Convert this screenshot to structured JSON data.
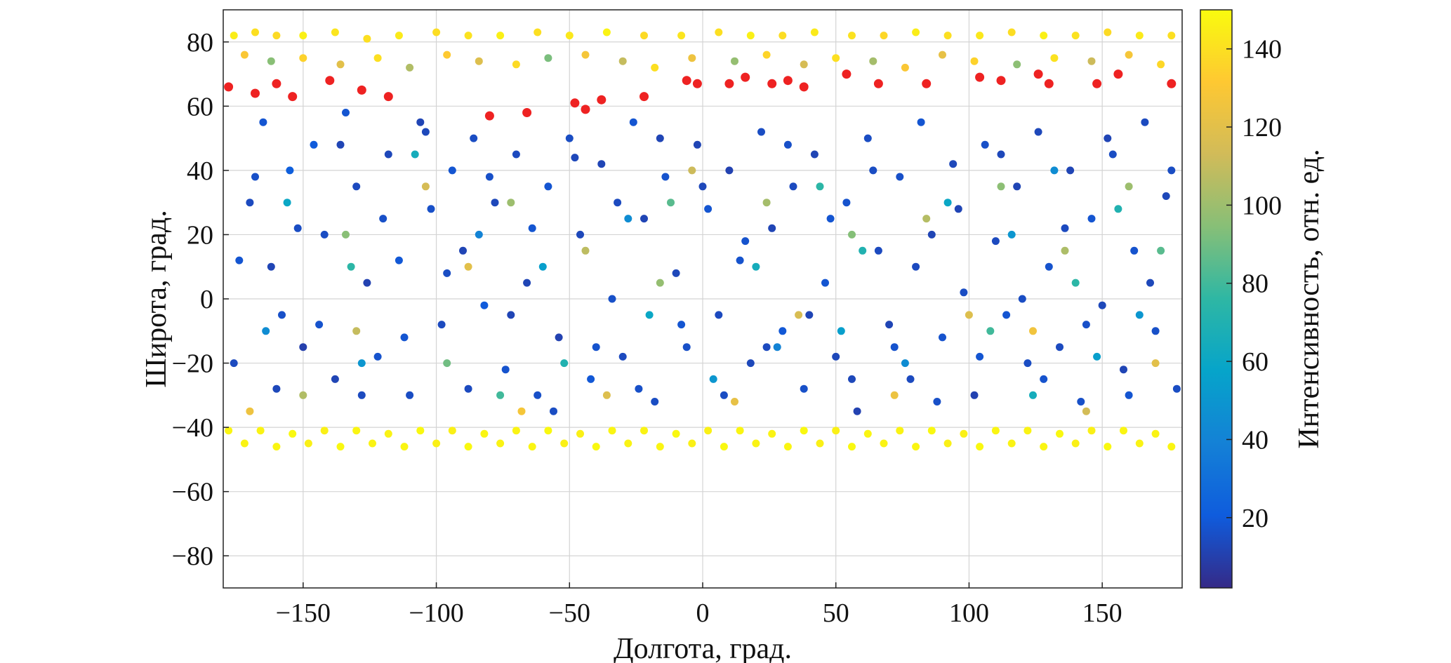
{
  "chart_data": {
    "type": "scatter",
    "title": "",
    "xlabel": "Долгота, град.",
    "ylabel": "Широта, град.",
    "colorbar_label": "Интенсивность, отн. ед.",
    "xlim": [
      -180,
      180
    ],
    "ylim": [
      -90,
      90
    ],
    "clim": [
      2,
      150
    ],
    "grid": true,
    "xticks": [
      -150,
      -100,
      -50,
      0,
      50,
      100,
      150
    ],
    "xtick_labels": [
      "−150",
      "−100",
      "−50",
      "0",
      "50",
      "100",
      "150"
    ],
    "yticks": [
      -80,
      -60,
      -40,
      -20,
      0,
      20,
      40,
      60,
      80
    ],
    "ytick_labels": [
      "−80",
      "−60",
      "−40",
      "−20",
      "0",
      "20",
      "40",
      "60",
      "80"
    ],
    "colorbar_ticks": [
      20,
      40,
      60,
      80,
      100,
      120,
      140
    ],
    "colorbar_tick_labels": [
      "20",
      "40",
      "60",
      "80",
      "100",
      "120",
      "140"
    ],
    "colormap": [
      "#352a87",
      "#0f5cdd",
      "#1481d6",
      "#06a4ca",
      "#2eb7a4",
      "#87bf77",
      "#d1bb59",
      "#fec832",
      "#f9fb0e"
    ],
    "saturated_color": "#ee2222",
    "points": [
      [
        -178,
        66,
        200
      ],
      [
        -168,
        64,
        200
      ],
      [
        -160,
        67,
        200
      ],
      [
        -154,
        63,
        200
      ],
      [
        -140,
        68,
        200
      ],
      [
        -128,
        65,
        200
      ],
      [
        -118,
        63,
        200
      ],
      [
        -80,
        57,
        200
      ],
      [
        -66,
        58,
        200
      ],
      [
        -48,
        61,
        200
      ],
      [
        -44,
        59,
        200
      ],
      [
        -38,
        62,
        200
      ],
      [
        -22,
        63,
        200
      ],
      [
        -6,
        68,
        200
      ],
      [
        -2,
        67,
        200
      ],
      [
        10,
        67,
        200
      ],
      [
        16,
        69,
        200
      ],
      [
        26,
        67,
        200
      ],
      [
        32,
        68,
        200
      ],
      [
        38,
        66,
        200
      ],
      [
        54,
        70,
        200
      ],
      [
        66,
        67,
        200
      ],
      [
        84,
        67,
        200
      ],
      [
        104,
        69,
        200
      ],
      [
        112,
        68,
        200
      ],
      [
        126,
        70,
        200
      ],
      [
        130,
        67,
        200
      ],
      [
        148,
        67,
        200
      ],
      [
        156,
        70,
        200
      ],
      [
        176,
        67,
        200
      ],
      [
        -176,
        82,
        145
      ],
      [
        -168,
        83,
        140
      ],
      [
        -160,
        82,
        138
      ],
      [
        -150,
        82,
        146
      ],
      [
        -138,
        83,
        142
      ],
      [
        -126,
        81,
        140
      ],
      [
        -114,
        82,
        144
      ],
      [
        -100,
        83,
        139
      ],
      [
        -88,
        82,
        141
      ],
      [
        -76,
        82,
        146
      ],
      [
        -62,
        83,
        140
      ],
      [
        -50,
        82,
        143
      ],
      [
        -36,
        83,
        147
      ],
      [
        -22,
        82,
        138
      ],
      [
        -8,
        82,
        142
      ],
      [
        6,
        83,
        140
      ],
      [
        18,
        82,
        146
      ],
      [
        30,
        82,
        139
      ],
      [
        42,
        83,
        144
      ],
      [
        56,
        82,
        141
      ],
      [
        68,
        82,
        137
      ],
      [
        80,
        83,
        145
      ],
      [
        92,
        82,
        140
      ],
      [
        104,
        82,
        143
      ],
      [
        116,
        83,
        139
      ],
      [
        128,
        82,
        146
      ],
      [
        140,
        82,
        141
      ],
      [
        152,
        83,
        138
      ],
      [
        164,
        82,
        144
      ],
      [
        176,
        82,
        140
      ],
      [
        -172,
        76,
        130
      ],
      [
        -162,
        74,
        95
      ],
      [
        -150,
        75,
        135
      ],
      [
        -136,
        73,
        120
      ],
      [
        -122,
        75,
        140
      ],
      [
        -110,
        72,
        105
      ],
      [
        -96,
        76,
        132
      ],
      [
        -84,
        74,
        118
      ],
      [
        -70,
        73,
        138
      ],
      [
        -58,
        75,
        92
      ],
      [
        -44,
        76,
        128
      ],
      [
        -30,
        74,
        110
      ],
      [
        -18,
        72,
        140
      ],
      [
        -4,
        75,
        125
      ],
      [
        12,
        74,
        98
      ],
      [
        24,
        76,
        136
      ],
      [
        38,
        73,
        115
      ],
      [
        50,
        75,
        140
      ],
      [
        64,
        74,
        102
      ],
      [
        76,
        72,
        130
      ],
      [
        90,
        76,
        122
      ],
      [
        102,
        74,
        135
      ],
      [
        118,
        73,
        96
      ],
      [
        132,
        75,
        141
      ],
      [
        146,
        74,
        112
      ],
      [
        160,
        76,
        128
      ],
      [
        172,
        73,
        137
      ],
      [
        -178,
        -41,
        148
      ],
      [
        -166,
        -41,
        147
      ],
      [
        -154,
        -42,
        149
      ],
      [
        -142,
        -41,
        146
      ],
      [
        -130,
        -41,
        148
      ],
      [
        -118,
        -42,
        147
      ],
      [
        -106,
        -41,
        149
      ],
      [
        -94,
        -41,
        146
      ],
      [
        -82,
        -42,
        148
      ],
      [
        -70,
        -41,
        147
      ],
      [
        -58,
        -41,
        149
      ],
      [
        -46,
        -42,
        146
      ],
      [
        -34,
        -41,
        148
      ],
      [
        -22,
        -41,
        147
      ],
      [
        -10,
        -42,
        149
      ],
      [
        2,
        -41,
        146
      ],
      [
        14,
        -41,
        148
      ],
      [
        26,
        -42,
        147
      ],
      [
        38,
        -41,
        149
      ],
      [
        50,
        -41,
        146
      ],
      [
        62,
        -42,
        148
      ],
      [
        74,
        -41,
        147
      ],
      [
        86,
        -41,
        149
      ],
      [
        98,
        -42,
        146
      ],
      [
        110,
        -41,
        148
      ],
      [
        122,
        -41,
        147
      ],
      [
        134,
        -42,
        149
      ],
      [
        146,
        -41,
        146
      ],
      [
        158,
        -41,
        148
      ],
      [
        170,
        -42,
        147
      ],
      [
        -172,
        -45,
        147
      ],
      [
        -160,
        -46,
        148
      ],
      [
        -148,
        -45,
        146
      ],
      [
        -136,
        -46,
        149
      ],
      [
        -124,
        -45,
        147
      ],
      [
        -112,
        -46,
        148
      ],
      [
        -100,
        -45,
        146
      ],
      [
        -88,
        -46,
        149
      ],
      [
        -76,
        -45,
        147
      ],
      [
        -64,
        -46,
        148
      ],
      [
        -52,
        -45,
        146
      ],
      [
        -40,
        -46,
        149
      ],
      [
        -28,
        -45,
        147
      ],
      [
        -16,
        -46,
        148
      ],
      [
        -4,
        -45,
        146
      ],
      [
        8,
        -46,
        149
      ],
      [
        20,
        -45,
        147
      ],
      [
        32,
        -46,
        148
      ],
      [
        44,
        -45,
        146
      ],
      [
        56,
        -46,
        149
      ],
      [
        68,
        -45,
        147
      ],
      [
        80,
        -46,
        148
      ],
      [
        92,
        -45,
        146
      ],
      [
        104,
        -46,
        149
      ],
      [
        116,
        -45,
        147
      ],
      [
        128,
        -46,
        148
      ],
      [
        140,
        -45,
        146
      ],
      [
        152,
        -46,
        149
      ],
      [
        164,
        -45,
        147
      ],
      [
        176,
        -46,
        148
      ],
      [
        -170,
        30,
        14
      ],
      [
        -165,
        55,
        18
      ],
      [
        -162,
        10,
        12
      ],
      [
        -158,
        -5,
        16
      ],
      [
        -155,
        40,
        22
      ],
      [
        -150,
        -15,
        10
      ],
      [
        -146,
        48,
        20
      ],
      [
        -142,
        20,
        15
      ],
      [
        -138,
        -25,
        12
      ],
      [
        -134,
        58,
        18
      ],
      [
        -130,
        35,
        14
      ],
      [
        -126,
        5,
        11
      ],
      [
        -122,
        -18,
        17
      ],
      [
        -118,
        45,
        13
      ],
      [
        -114,
        12,
        19
      ],
      [
        -110,
        -30,
        15
      ],
      [
        -106,
        55,
        12
      ],
      [
        -102,
        28,
        16
      ],
      [
        -98,
        -8,
        14
      ],
      [
        -94,
        40,
        18
      ],
      [
        -90,
        15,
        12
      ],
      [
        -86,
        50,
        15
      ],
      [
        -82,
        -2,
        20
      ],
      [
        -78,
        30,
        13
      ],
      [
        -74,
        -22,
        17
      ],
      [
        -70,
        45,
        14
      ],
      [
        -66,
        5,
        12
      ],
      [
        -62,
        -30,
        16
      ],
      [
        -58,
        35,
        18
      ],
      [
        -54,
        -12,
        11
      ],
      [
        -50,
        50,
        15
      ],
      [
        -46,
        20,
        13
      ],
      [
        -42,
        -25,
        19
      ],
      [
        -38,
        42,
        12
      ],
      [
        -34,
        0,
        16
      ],
      [
        -30,
        -18,
        14
      ],
      [
        -26,
        55,
        18
      ],
      [
        -22,
        25,
        12
      ],
      [
        -18,
        -32,
        15
      ],
      [
        -14,
        38,
        17
      ],
      [
        -10,
        8,
        13
      ],
      [
        -6,
        -15,
        16
      ],
      [
        -2,
        48,
        12
      ],
      [
        2,
        28,
        18
      ],
      [
        6,
        -5,
        14
      ],
      [
        10,
        40,
        11
      ],
      [
        14,
        12,
        17
      ],
      [
        18,
        -20,
        13
      ],
      [
        22,
        52,
        15
      ],
      [
        26,
        22,
        12
      ],
      [
        30,
        -10,
        19
      ],
      [
        34,
        35,
        14
      ],
      [
        38,
        -28,
        16
      ],
      [
        42,
        45,
        12
      ],
      [
        46,
        5,
        18
      ],
      [
        50,
        -18,
        13
      ],
      [
        54,
        30,
        17
      ],
      [
        58,
        -35,
        11
      ],
      [
        62,
        50,
        15
      ],
      [
        66,
        15,
        14
      ],
      [
        70,
        -8,
        12
      ],
      [
        74,
        38,
        16
      ],
      [
        78,
        -25,
        14
      ],
      [
        82,
        55,
        18
      ],
      [
        86,
        20,
        12
      ],
      [
        90,
        -12,
        17
      ],
      [
        94,
        42,
        13
      ],
      [
        98,
        2,
        15
      ],
      [
        102,
        -30,
        11
      ],
      [
        106,
        48,
        16
      ],
      [
        110,
        18,
        14
      ],
      [
        114,
        -5,
        18
      ],
      [
        118,
        35,
        12
      ],
      [
        122,
        -20,
        15
      ],
      [
        126,
        52,
        13
      ],
      [
        130,
        10,
        17
      ],
      [
        134,
        -15,
        14
      ],
      [
        138,
        40,
        12
      ],
      [
        142,
        -32,
        16
      ],
      [
        146,
        25,
        18
      ],
      [
        150,
        -2,
        13
      ],
      [
        154,
        45,
        15
      ],
      [
        158,
        -22,
        12
      ],
      [
        162,
        15,
        17
      ],
      [
        166,
        55,
        14
      ],
      [
        170,
        -10,
        16
      ],
      [
        174,
        32,
        13
      ],
      [
        178,
        -28,
        15
      ],
      [
        -176,
        -20,
        14
      ],
      [
        -168,
        38,
        16
      ],
      [
        -174,
        12,
        18
      ],
      [
        -160,
        -28,
        13
      ],
      [
        -152,
        22,
        15
      ],
      [
        -144,
        -8,
        17
      ],
      [
        -136,
        48,
        12
      ],
      [
        -128,
        -30,
        14
      ],
      [
        -120,
        25,
        16
      ],
      [
        -112,
        -12,
        18
      ],
      [
        -104,
        52,
        13
      ],
      [
        -96,
        8,
        15
      ],
      [
        -88,
        -28,
        14
      ],
      [
        -80,
        38,
        16
      ],
      [
        -72,
        -5,
        12
      ],
      [
        -64,
        22,
        18
      ],
      [
        -56,
        -35,
        15
      ],
      [
        -48,
        44,
        13
      ],
      [
        -40,
        -15,
        17
      ],
      [
        -32,
        30,
        14
      ],
      [
        -24,
        -28,
        16
      ],
      [
        -16,
        50,
        12
      ],
      [
        -8,
        -8,
        18
      ],
      [
        0,
        35,
        13
      ],
      [
        8,
        -30,
        15
      ],
      [
        16,
        18,
        17
      ],
      [
        24,
        -15,
        14
      ],
      [
        32,
        48,
        16
      ],
      [
        40,
        -5,
        12
      ],
      [
        48,
        25,
        18
      ],
      [
        56,
        -25,
        13
      ],
      [
        64,
        40,
        15
      ],
      [
        72,
        -15,
        17
      ],
      [
        80,
        10,
        14
      ],
      [
        88,
        -32,
        16
      ],
      [
        96,
        28,
        12
      ],
      [
        104,
        -18,
        18
      ],
      [
        112,
        45,
        13
      ],
      [
        120,
        0,
        15
      ],
      [
        128,
        -25,
        17
      ],
      [
        136,
        22,
        14
      ],
      [
        144,
        -8,
        16
      ],
      [
        152,
        50,
        12
      ],
      [
        160,
        -30,
        18
      ],
      [
        168,
        5,
        13
      ],
      [
        176,
        40,
        15
      ],
      [
        -164,
        -10,
        45
      ],
      [
        -156,
        30,
        60
      ],
      [
        -132,
        10,
        75
      ],
      [
        -128,
        -20,
        50
      ],
      [
        -108,
        45,
        65
      ],
      [
        -84,
        20,
        40
      ],
      [
        -76,
        -30,
        80
      ],
      [
        -60,
        10,
        55
      ],
      [
        -52,
        -20,
        70
      ],
      [
        -28,
        25,
        45
      ],
      [
        -20,
        -5,
        60
      ],
      [
        -12,
        30,
        85
      ],
      [
        4,
        -25,
        50
      ],
      [
        20,
        10,
        65
      ],
      [
        28,
        -15,
        40
      ],
      [
        44,
        35,
        75
      ],
      [
        52,
        -10,
        55
      ],
      [
        60,
        15,
        70
      ],
      [
        76,
        -20,
        45
      ],
      [
        92,
        30,
        60
      ],
      [
        108,
        -10,
        80
      ],
      [
        116,
        20,
        50
      ],
      [
        124,
        -30,
        65
      ],
      [
        132,
        40,
        45
      ],
      [
        140,
        5,
        75
      ],
      [
        148,
        -18,
        55
      ],
      [
        156,
        28,
        70
      ],
      [
        164,
        -5,
        50
      ],
      [
        172,
        15,
        85
      ],
      [
        -170,
        -35,
        125
      ],
      [
        -150,
        -30,
        105
      ],
      [
        -134,
        20,
        95
      ],
      [
        -130,
        -10,
        110
      ],
      [
        -104,
        35,
        115
      ],
      [
        -96,
        -20,
        90
      ],
      [
        -88,
        10,
        120
      ],
      [
        -72,
        30,
        100
      ],
      [
        -68,
        -35,
        128
      ],
      [
        -44,
        15,
        108
      ],
      [
        -36,
        -30,
        118
      ],
      [
        -16,
        5,
        98
      ],
      [
        -4,
        40,
        112
      ],
      [
        12,
        -32,
        122
      ],
      [
        24,
        30,
        102
      ],
      [
        36,
        -5,
        116
      ],
      [
        56,
        20,
        94
      ],
      [
        72,
        -30,
        124
      ],
      [
        84,
        25,
        106
      ],
      [
        100,
        -5,
        118
      ],
      [
        112,
        35,
        96
      ],
      [
        124,
        -10,
        126
      ],
      [
        136,
        15,
        104
      ],
      [
        144,
        -35,
        114
      ],
      [
        160,
        35,
        100
      ],
      [
        170,
        -20,
        120
      ]
    ]
  }
}
